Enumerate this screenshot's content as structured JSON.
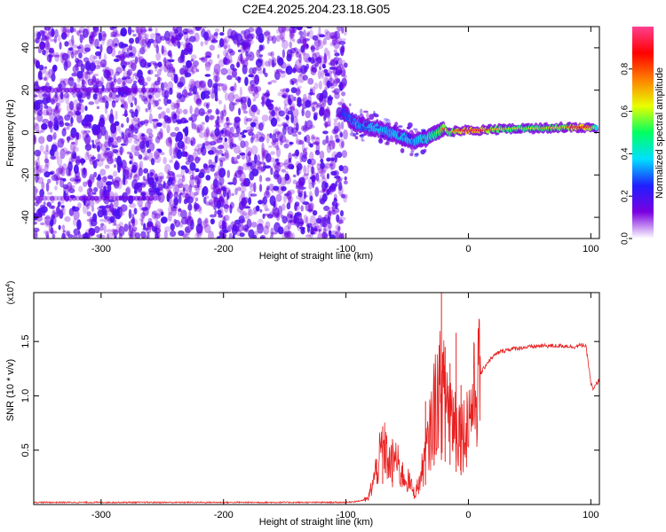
{
  "title": "C2E4.2025.204.23.18.G05",
  "chart_data": [
    {
      "type": "heatmap",
      "xlabel": "Height of straight line (km)",
      "ylabel": "Frequency (Hz)",
      "xlim": [
        -355,
        107
      ],
      "ylim": [
        -50,
        50
      ],
      "xticks": [
        -300,
        -200,
        -100,
        0,
        100
      ],
      "xtick_labels": [
        "-300",
        "-200",
        "-100",
        "0",
        "100"
      ],
      "yticks": [
        -40,
        -20,
        0,
        20,
        40
      ],
      "ytick_labels": [
        "-40",
        "-20",
        "0",
        "20",
        "40"
      ],
      "noise_region_x": [
        -355,
        -100
      ],
      "signal_trace": {
        "x": [
          -102,
          -95,
          -85,
          -75,
          -65,
          -55,
          -45,
          -35,
          -25,
          -20,
          -15,
          -10,
          0,
          10,
          20,
          40,
          60,
          80,
          90,
          100,
          105
        ],
        "freq": [
          10,
          5,
          3,
          2,
          0,
          -2,
          -4,
          -3,
          0,
          2,
          0,
          1,
          1,
          1,
          1.5,
          2,
          2,
          2.5,
          2.5,
          2.5,
          2
        ],
        "amplitude": [
          0.2,
          0.3,
          0.35,
          0.4,
          0.35,
          0.4,
          0.35,
          0.45,
          0.6,
          0.75,
          0.6,
          0.8,
          0.95,
          0.9,
          0.7,
          0.6,
          0.65,
          0.7,
          0.95,
          0.8,
          0.4
        ]
      },
      "colorbar": {
        "label": "Normalized spectral amplitude",
        "range": [
          0,
          1
        ],
        "ticks": [
          0.0,
          0.2,
          0.4,
          0.6,
          0.8
        ],
        "tick_labels": [
          "0.0",
          "0.2",
          "0.4",
          "0.6",
          "0.8"
        ],
        "colors": [
          "#ffffff",
          "#7a00e0",
          "#2020ff",
          "#00e0ff",
          "#00ff60",
          "#e8ff00",
          "#ff8000",
          "#ff0000",
          "#ff4090"
        ]
      }
    },
    {
      "type": "line",
      "xlabel": "Height of straight line (km)",
      "ylabel": "SNR (10 * v/v)",
      "multiplier_label": "(x10",
      "multiplier_exp": "4",
      "xlim": [
        -355,
        107
      ],
      "ylim": [
        0,
        1.95
      ],
      "xticks": [
        -300,
        -200,
        -100,
        0,
        100
      ],
      "xtick_labels": [
        "-300",
        "-200",
        "-100",
        "0",
        "100"
      ],
      "yticks": [
        0.5,
        1.0,
        1.5
      ],
      "ytick_labels": [
        "0.5",
        "1.0",
        "1.5"
      ],
      "series": [
        {
          "color": "#e82020",
          "x": [
            -355,
            -300,
            -250,
            -200,
            -150,
            -110,
            -100,
            -90,
            -82,
            -78,
            -72,
            -68,
            -64,
            -60,
            -56,
            -52,
            -48,
            -44,
            -40,
            -36,
            -32,
            -28,
            -24,
            -20,
            -16,
            -12,
            -8,
            -4,
            0,
            5,
            10,
            15,
            20,
            25,
            30,
            40,
            50,
            60,
            70,
            80,
            85,
            90,
            94,
            96,
            98,
            100,
            102,
            104,
            107
          ],
          "y": [
            0.02,
            0.02,
            0.02,
            0.02,
            0.02,
            0.02,
            0.02,
            0.03,
            0.05,
            0.2,
            0.45,
            0.5,
            0.35,
            0.45,
            0.3,
            0.25,
            0.2,
            0.1,
            0.2,
            0.4,
            0.6,
            0.9,
            1.05,
            1.0,
            0.95,
            0.8,
            0.7,
            0.65,
            0.8,
            1.0,
            1.2,
            1.3,
            1.36,
            1.4,
            1.42,
            1.44,
            1.45,
            1.46,
            1.46,
            1.46,
            1.45,
            1.46,
            1.47,
            1.45,
            1.3,
            1.12,
            1.05,
            1.1,
            1.15
          ]
        }
      ],
      "spikes": [
        {
          "x": -70,
          "y": 0.72
        },
        {
          "x": -62,
          "y": 0.6
        },
        {
          "x": -35,
          "y": 0.95
        },
        {
          "x": -28,
          "y": 1.18
        },
        {
          "x": -22,
          "y": 1.95
        },
        {
          "x": -19,
          "y": 1.45
        },
        {
          "x": -15,
          "y": 1.3
        },
        {
          "x": -10,
          "y": 1.58
        },
        {
          "x": -6,
          "y": 1.1
        }
      ]
    }
  ]
}
